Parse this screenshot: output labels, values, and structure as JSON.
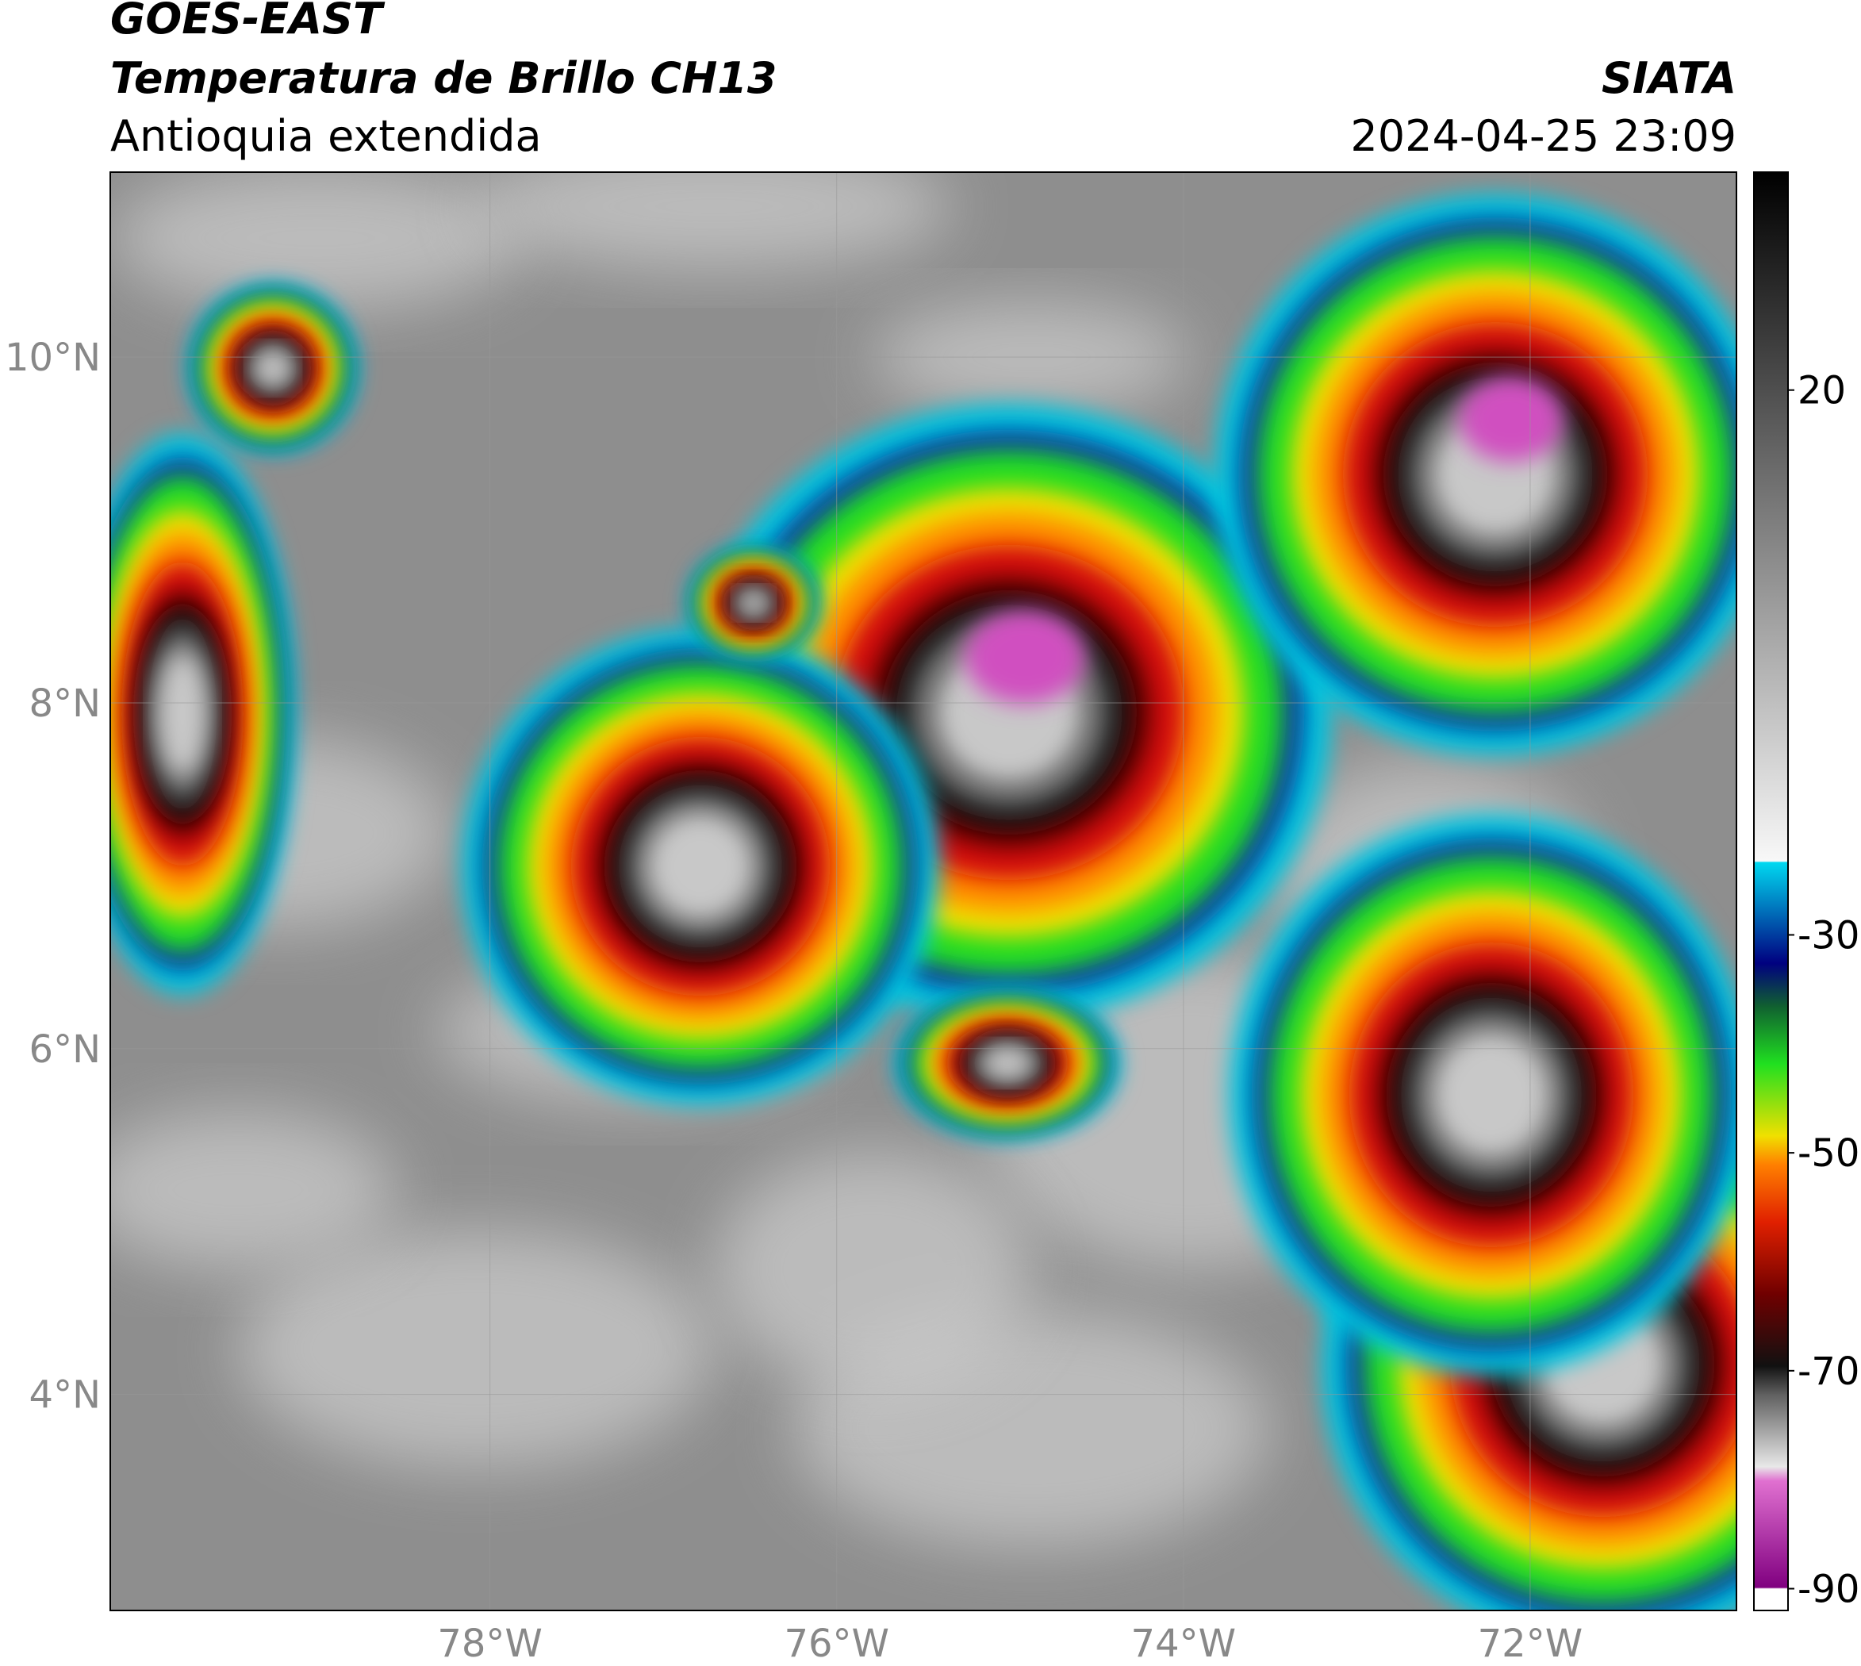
{
  "chart_data": {
    "type": "map",
    "title": "GOES-EAST",
    "subtitle": "Temperatura de Brillo CH13",
    "region": "Antioquia extendida",
    "source": "SIATA",
    "timestamp": "2024-04-25 23:09",
    "xlim": [
      -80.19,
      -70.81
    ],
    "ylim": [
      2.75,
      11.07
    ],
    "xticks": [
      {
        "value": -78,
        "label": "78°W"
      },
      {
        "value": -76,
        "label": "76°W"
      },
      {
        "value": -74,
        "label": "74°W"
      },
      {
        "value": -72,
        "label": "72°W"
      }
    ],
    "yticks": [
      {
        "value": 4,
        "label": "4°N"
      },
      {
        "value": 6,
        "label": "6°N"
      },
      {
        "value": 8,
        "label": "8°N"
      },
      {
        "value": 10,
        "label": "10°N"
      }
    ],
    "grid": true,
    "colorbar": {
      "lim": [
        -92,
        40
      ],
      "ticks": [
        -90,
        -70,
        -50,
        -30,
        20
      ]
    }
  }
}
